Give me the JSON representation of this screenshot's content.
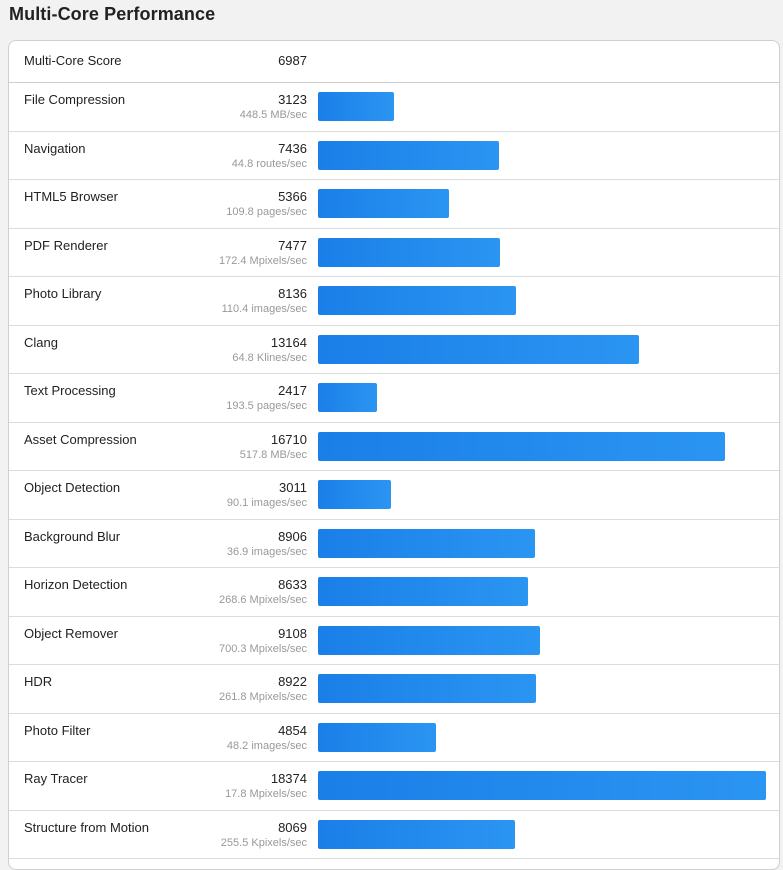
{
  "page": {
    "title": "Multi-Core Performance"
  },
  "header": {
    "label": "Multi-Core Score",
    "score": "6987"
  },
  "colors": {
    "bar_start": "#1a7fe8",
    "bar_end": "#2b95f2"
  },
  "chart_data": {
    "type": "bar",
    "orientation": "horizontal",
    "title": "Multi-Core Performance",
    "overall_score": {
      "label": "Multi-Core Score",
      "value": 6987
    },
    "categories": [
      "File Compression",
      "Navigation",
      "HTML5 Browser",
      "PDF Renderer",
      "Photo Library",
      "Clang",
      "Text Processing",
      "Asset Compression",
      "Object Detection",
      "Background Blur",
      "Horizon Detection",
      "Object Remover",
      "HDR",
      "Photo Filter",
      "Ray Tracer",
      "Structure from Motion"
    ],
    "values": [
      3123,
      7436,
      5366,
      7477,
      8136,
      13164,
      2417,
      16710,
      3011,
      8906,
      8633,
      9108,
      8922,
      4854,
      18374,
      8069
    ],
    "rates": [
      "448.5 MB/sec",
      "44.8 routes/sec",
      "109.8 pages/sec",
      "172.4 Mpixels/sec",
      "110.4 images/sec",
      "64.8 Klines/sec",
      "193.5 pages/sec",
      "517.8 MB/sec",
      "90.1 images/sec",
      "36.9 images/sec",
      "268.6 Mpixels/sec",
      "700.3 Mpixels/sec",
      "261.8 Mpixels/sec",
      "48.2 images/sec",
      "17.8 Mpixels/sec",
      "255.5 Kpixels/sec"
    ],
    "xlim": [
      0,
      18374
    ],
    "grid": false,
    "legend": "none"
  }
}
